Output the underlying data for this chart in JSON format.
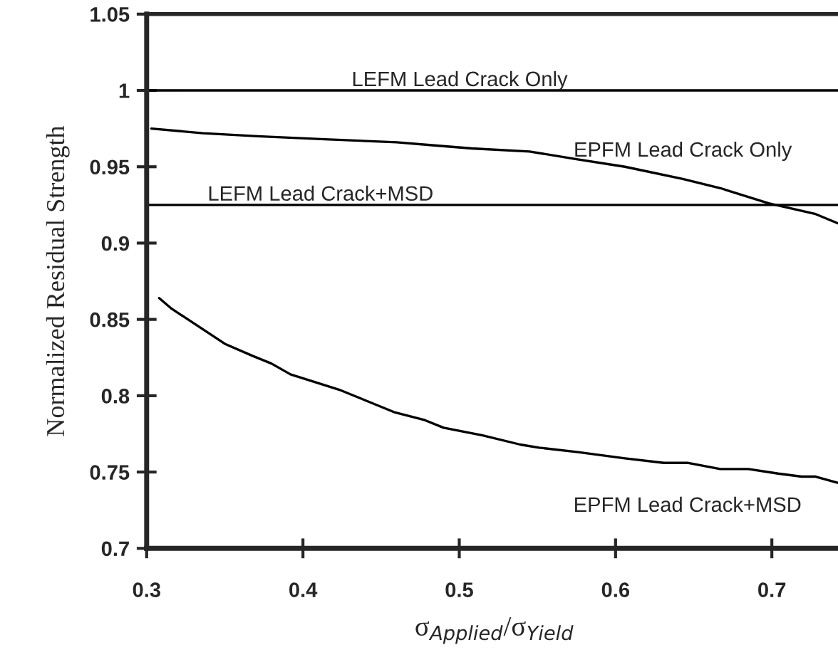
{
  "chart_data": {
    "type": "line",
    "xlabel": "σ$_{Applied}$/σ$_{Yield}$",
    "ylabel": "Normalized Residual Strength",
    "xlim": [
      0.3,
      0.745
    ],
    "xticks": [
      0.3,
      0.4,
      0.5,
      0.6,
      0.7
    ],
    "ylim": [
      0.7,
      1.05
    ],
    "yticks": [
      0.7,
      0.75,
      0.8,
      0.85,
      0.9,
      0.95,
      {
        "value": 1,
        "label": "1"
      },
      1.05
    ],
    "grid": false,
    "legend": false,
    "marker": "none",
    "line_style": "solid",
    "ref_lines": [
      {
        "axis": "y",
        "value": 1,
        "label": "LEFM Lead Crack Only",
        "color": "#000000"
      },
      {
        "axis": "y",
        "value": 0.925,
        "label": "LEFM Lead Crack+MSD",
        "color": "#000000"
      }
    ],
    "series": [
      {
        "name": "EPFM Lead Crack Only",
        "color": "#000000",
        "x": [
          0.303,
          0.336,
          0.371,
          0.414,
          0.46,
          0.484,
          0.508,
          0.545,
          0.575,
          0.606,
          0.643,
          0.667,
          0.698,
          0.728,
          0.742
        ],
        "values": [
          0.975,
          0.972,
          0.97,
          0.968,
          0.966,
          0.964,
          0.962,
          0.96,
          0.955,
          0.95,
          0.942,
          0.936,
          0.926,
          0.919,
          0.913
        ]
      },
      {
        "name": "EPFM Lead Crack+MSD",
        "color": "#000000",
        "x": [
          0.308,
          0.316,
          0.35,
          0.368,
          0.38,
          0.392,
          0.423,
          0.459,
          0.478,
          0.49,
          0.515,
          0.539,
          0.551,
          0.576,
          0.606,
          0.631,
          0.646,
          0.667,
          0.685,
          0.704,
          0.719,
          0.728,
          0.742
        ],
        "values": [
          0.864,
          0.857,
          0.834,
          0.826,
          0.821,
          0.814,
          0.804,
          0.789,
          0.784,
          0.779,
          0.774,
          0.768,
          0.766,
          0.763,
          0.759,
          0.756,
          0.756,
          0.752,
          0.752,
          0.749,
          0.747,
          0.747,
          0.743
        ]
      }
    ]
  }
}
